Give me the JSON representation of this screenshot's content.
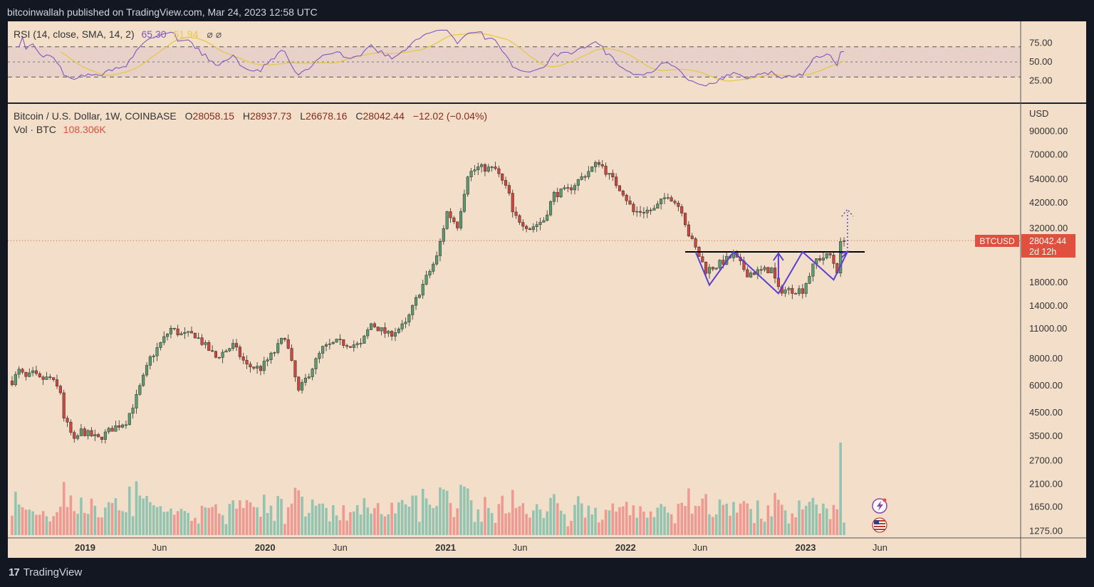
{
  "header": {
    "publisher": "bitcoinwallah published on TradingView.com, Mar 24, 2023 12:58 UTC"
  },
  "footer": {
    "brand": "TradingView"
  },
  "rsi_legend": {
    "label": "RSI (14, close, SMA, 14, 2)",
    "value": "65.30",
    "sma_value": "51.94",
    "icons": "⌀ ⌀"
  },
  "price_legend": {
    "symbol": "Bitcoin / U.S. Dollar, 1W, COINBASE",
    "open_label": "O",
    "open": "28058.15",
    "high_label": "H",
    "high": "28937.73",
    "low_label": "L",
    "low": "26678.16",
    "close_label": "C",
    "close": "28042.44",
    "change": "−12.02 (−0.04%)",
    "vol_label": "Vol · BTC",
    "vol_value": "108.306K"
  },
  "price_axis": {
    "currency": "USD",
    "ticks": [
      "90000.00",
      "70000.00",
      "54000.00",
      "42000.00",
      "32000.00",
      "18000.00",
      "14000.00",
      "11000.00",
      "8000.00",
      "6000.00",
      "4500.00",
      "3500.00",
      "2700.00",
      "2100.00",
      "1650.00",
      "1275.00"
    ]
  },
  "rsi_axis": {
    "ticks": [
      "75.00",
      "50.00",
      "25.00"
    ]
  },
  "time_axis": {
    "ticks": [
      "2019",
      "Jun",
      "2020",
      "Jun",
      "2021",
      "Jun",
      "2022",
      "Jun",
      "2023",
      "Jun"
    ]
  },
  "last_price_tag": {
    "symbol": "BTCUSD",
    "price": "28042.44",
    "countdown": "2d 12h"
  },
  "colors": {
    "background": "#f3dfc9",
    "up": "#5b9b6d",
    "down": "#d0453c",
    "vol_up": "#93c4b1",
    "vol_down": "#ee9a92",
    "rsi_line": "#7e57c2",
    "rsi_sma": "#e6c84a",
    "pattern": "#5b3fd1",
    "tag": "#e0503e"
  },
  "chart_data": {
    "type": "candlestick",
    "interval": "1W",
    "y_scale": "log",
    "resistance_level": 24900,
    "last_close": 28042.44,
    "weekly_close_path": [
      [
        "2018-08-06",
        6300
      ],
      [
        "2018-08-20",
        7000
      ],
      [
        "2018-09-03",
        6500
      ],
      [
        "2018-09-17",
        6800
      ],
      [
        "2018-10-01",
        6400
      ],
      [
        "2018-10-22",
        6500
      ],
      [
        "2018-11-12",
        5600
      ],
      [
        "2018-11-19",
        4300
      ],
      [
        "2018-12-10",
        3300
      ],
      [
        "2018-12-24",
        3700
      ],
      [
        "2019-01-28",
        3400
      ],
      [
        "2019-02-25",
        3800
      ],
      [
        "2019-03-25",
        4100
      ],
      [
        "2019-04-15",
        5300
      ],
      [
        "2019-05-13",
        8000
      ],
      [
        "2019-06-24",
        11000
      ],
      [
        "2019-07-15",
        10300
      ],
      [
        "2019-08-12",
        10300
      ],
      [
        "2019-09-23",
        8100
      ],
      [
        "2019-10-28",
        9200
      ],
      [
        "2019-11-25",
        7400
      ],
      [
        "2019-12-23",
        7200
      ],
      [
        "2020-01-20",
        8600
      ],
      [
        "2020-02-10",
        10200
      ],
      [
        "2020-03-09",
        5600
      ],
      [
        "2020-03-23",
        6400
      ],
      [
        "2020-04-27",
        8900
      ],
      [
        "2020-05-25",
        9500
      ],
      [
        "2020-07-13",
        9200
      ],
      [
        "2020-08-03",
        11600
      ],
      [
        "2020-09-07",
        10300
      ],
      [
        "2020-10-12",
        11500
      ],
      [
        "2020-11-09",
        16300
      ],
      [
        "2020-12-14",
        23500
      ],
      [
        "2021-01-04",
        38000
      ],
      [
        "2021-01-25",
        33000
      ],
      [
        "2021-02-15",
        57000
      ],
      [
        "2021-03-08",
        61000
      ],
      [
        "2021-04-12",
        60000
      ],
      [
        "2021-05-10",
        46000
      ],
      [
        "2021-05-17",
        37000
      ],
      [
        "2021-06-21",
        32000
      ],
      [
        "2021-07-19",
        35000
      ],
      [
        "2021-08-09",
        46000
      ],
      [
        "2021-09-06",
        48000
      ],
      [
        "2021-10-04",
        55000
      ],
      [
        "2021-11-08",
        65000
      ],
      [
        "2021-11-29",
        56000
      ],
      [
        "2021-12-27",
        47000
      ],
      [
        "2022-01-17",
        38000
      ],
      [
        "2022-02-28",
        39000
      ],
      [
        "2022-03-28",
        46000
      ],
      [
        "2022-04-25",
        39000
      ],
      [
        "2022-05-09",
        30000
      ],
      [
        "2022-06-13",
        20500
      ],
      [
        "2022-07-04",
        21500
      ],
      [
        "2022-08-08",
        24000
      ],
      [
        "2022-09-05",
        19800
      ],
      [
        "2022-10-24",
        20700
      ],
      [
        "2022-11-07",
        16600
      ],
      [
        "2022-12-26",
        16600
      ],
      [
        "2023-01-23",
        23000
      ],
      [
        "2023-02-20",
        24000
      ],
      [
        "2023-03-06",
        20500
      ],
      [
        "2023-03-13",
        26900
      ],
      [
        "2023-03-20",
        28042
      ]
    ],
    "volume_axis_note": "",
    "rsi": {
      "period": 14,
      "source": "close",
      "ma": "SMA",
      "ma_period": 14,
      "last": 65.3,
      "ma_last": 51.94,
      "levels": [
        30,
        50,
        70
      ]
    }
  }
}
